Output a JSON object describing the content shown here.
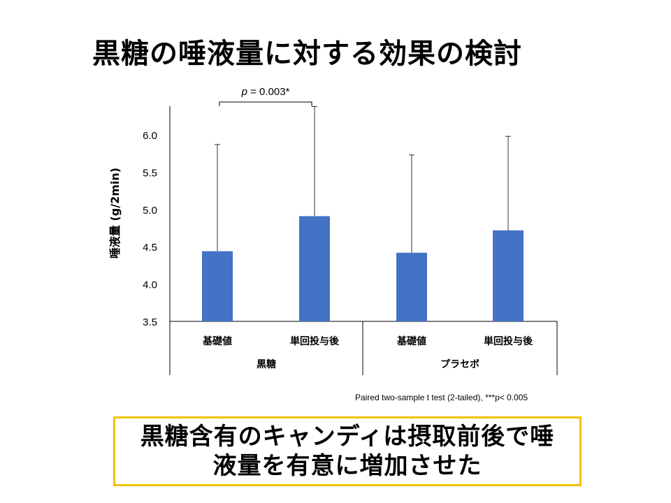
{
  "title": "黒糖の唾液量に対する効果の検討",
  "footnote": "Paired two-sample t test (2-tailed), ***p< 0.005",
  "conclusion": {
    "line1": "黒糖含有のキャンディは摂取前後で唾",
    "line2": "液量を有意に増加させた"
  },
  "colors": {
    "bar": "#4472c4",
    "conclusion_border": "#f2c200"
  },
  "chart_data": {
    "type": "bar",
    "ylabel": "唾液量 (g/2min)",
    "ylim": [
      3.5,
      6.4
    ],
    "yticks": [
      3.5,
      4.0,
      4.5,
      5.0,
      5.5,
      6.0
    ],
    "tick_labels": [
      "3.5",
      "4.0",
      "4.5",
      "5.0",
      "5.5",
      "6.0"
    ],
    "categories": [
      "基礎値",
      "単回投与後",
      "基礎値",
      "単回投与後"
    ],
    "groups": [
      {
        "label": "黒糖",
        "span": 2
      },
      {
        "label": "プラセボ",
        "span": 2
      }
    ],
    "values": [
      4.44,
      4.91,
      4.42,
      4.72
    ],
    "error_upper": [
      5.87,
      6.38,
      5.73,
      5.98
    ],
    "annotation": {
      "text": "p = 0.003*",
      "p_label": "p",
      "p_rest": " = 0.003*",
      "between": [
        0,
        1
      ]
    },
    "grid": false,
    "legend": "none"
  }
}
